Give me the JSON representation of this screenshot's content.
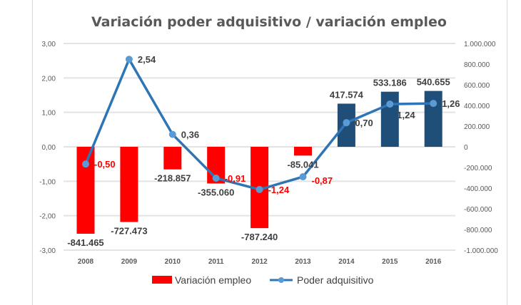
{
  "chart_data": {
    "type": "bar+line",
    "title": "Variación poder adquisitivo / variación empleo",
    "categories": [
      "2008",
      "2009",
      "2010",
      "2011",
      "2012",
      "2013",
      "2014",
      "2015",
      "2016"
    ],
    "series": [
      {
        "name": "Variación empleo",
        "type": "bar",
        "axis": "right",
        "values": [
          -841465,
          -727473,
          -218857,
          -355060,
          -787240,
          -85041,
          417574,
          533186,
          540655
        ],
        "labels": [
          "-841.465",
          "-727.473",
          "-218.857",
          "-355.060",
          "-787.240",
          "-85.041",
          "417.574",
          "533.186",
          "540.655"
        ]
      },
      {
        "name": "Poder adquisitivo",
        "type": "line",
        "axis": "left",
        "values": [
          -0.5,
          2.54,
          0.36,
          -0.91,
          -1.24,
          -0.87,
          0.7,
          1.24,
          1.26
        ],
        "labels": [
          "-0,50",
          "2,54",
          "0,36",
          "-0,91",
          "-1,24",
          "-0,87",
          "0,70",
          "1,24",
          "1,26"
        ]
      }
    ],
    "left_axis": {
      "ylim": [
        -3,
        3
      ],
      "ticks": [
        "3,00",
        "2,00",
        "1,00",
        "0,00",
        "-1,00",
        "-2,00",
        "-3,00"
      ]
    },
    "right_axis": {
      "ylim": [
        -1000000,
        1000000
      ],
      "ticks": [
        "1.000.000",
        "800.000",
        "600.000",
        "400.000",
        "200.000",
        "0",
        "-200.000",
        "-400.000",
        "-600.000",
        "-800.000",
        "-1.000.000"
      ]
    },
    "grid": true,
    "legend": "bottom",
    "colors": {
      "negative_bar": "#ff0000",
      "positive_bar": "#1f4e79",
      "line": "#2e75b6",
      "marker": "#5b9bd5",
      "negative_label": "#ff0000",
      "label": "#404040"
    }
  }
}
